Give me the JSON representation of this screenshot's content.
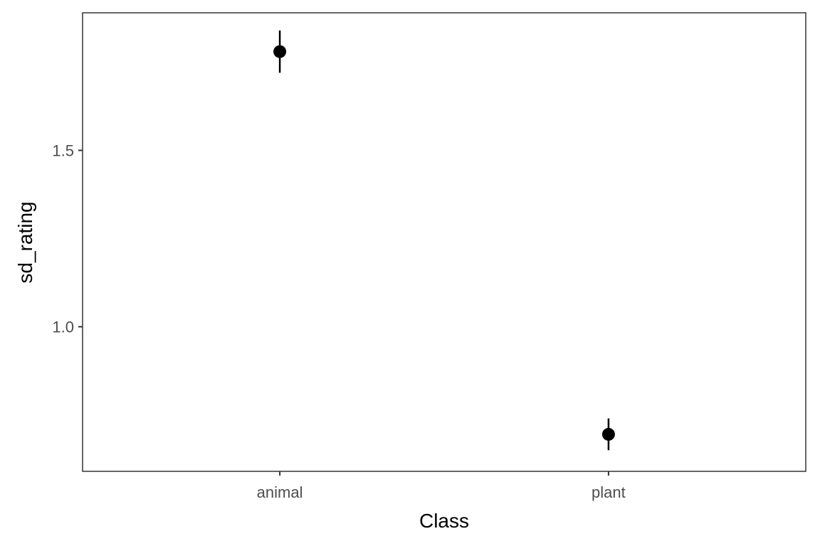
{
  "chart_data": {
    "type": "scatter",
    "title": "",
    "xlabel": "Class",
    "ylabel": "sd_rating",
    "categories": [
      "animal",
      "plant"
    ],
    "points": [
      {
        "category": "animal",
        "y": 1.78,
        "ymin": 1.72,
        "ymax": 1.84
      },
      {
        "category": "plant",
        "y": 0.695,
        "ymin": 0.65,
        "ymax": 0.74
      }
    ],
    "ylim": [
      0.59,
      1.89
    ],
    "yticks": [
      1.0,
      1.5
    ],
    "ytick_labels": [
      "1.0",
      "1.5"
    ],
    "grid": false,
    "legend": "none",
    "colors": {
      "point": "#000000",
      "panel_border": "#333333",
      "axis_tick": "#333333"
    }
  }
}
